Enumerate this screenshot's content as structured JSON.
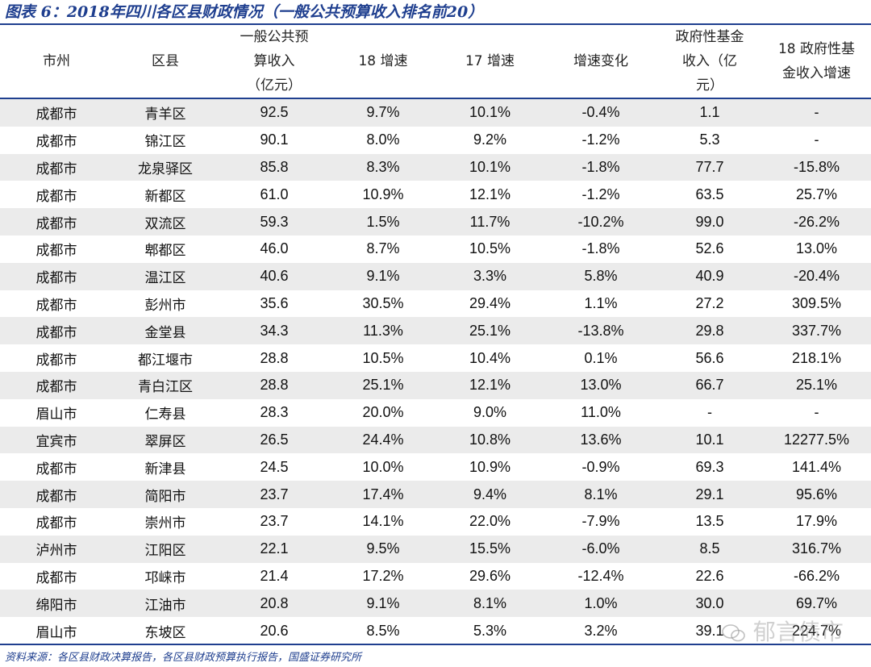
{
  "title": "图表 6：2018年四川各区县财政情况（一般公共预算收入排名前20）",
  "headers": {
    "city": "市州",
    "county": "区县",
    "revenue_l1": "一般公共预",
    "revenue_l2": "算收入",
    "revenue_l3": "（亿元）",
    "growth18": "18 增速",
    "growth17": "17 增速",
    "change": "增速变化",
    "fund_l1": "政府性基金",
    "fund_l2": "收入（亿",
    "fund_l3": "元）",
    "fund_growth_l1": "18 政府性基",
    "fund_growth_l2": "金收入增速"
  },
  "rows": [
    [
      "成都市",
      "青羊区",
      "92.5",
      "9.7%",
      "10.1%",
      "-0.4%",
      "1.1",
      "-"
    ],
    [
      "成都市",
      "锦江区",
      "90.1",
      "8.0%",
      "9.2%",
      "-1.2%",
      "5.3",
      "-"
    ],
    [
      "成都市",
      "龙泉驿区",
      "85.8",
      "8.3%",
      "10.1%",
      "-1.8%",
      "77.7",
      "-15.8%"
    ],
    [
      "成都市",
      "新都区",
      "61.0",
      "10.9%",
      "12.1%",
      "-1.2%",
      "63.5",
      "25.7%"
    ],
    [
      "成都市",
      "双流区",
      "59.3",
      "1.5%",
      "11.7%",
      "-10.2%",
      "99.0",
      "-26.2%"
    ],
    [
      "成都市",
      "郫都区",
      "46.0",
      "8.7%",
      "10.5%",
      "-1.8%",
      "52.6",
      "13.0%"
    ],
    [
      "成都市",
      "温江区",
      "40.6",
      "9.1%",
      "3.3%",
      "5.8%",
      "40.9",
      "-20.4%"
    ],
    [
      "成都市",
      "彭州市",
      "35.6",
      "30.5%",
      "29.4%",
      "1.1%",
      "27.2",
      "309.5%"
    ],
    [
      "成都市",
      "金堂县",
      "34.3",
      "11.3%",
      "25.1%",
      "-13.8%",
      "29.8",
      "337.7%"
    ],
    [
      "成都市",
      "都江堰市",
      "28.8",
      "10.5%",
      "10.4%",
      "0.1%",
      "56.6",
      "218.1%"
    ],
    [
      "成都市",
      "青白江区",
      "28.8",
      "25.1%",
      "12.1%",
      "13.0%",
      "66.7",
      "25.1%"
    ],
    [
      "眉山市",
      "仁寿县",
      "28.3",
      "20.0%",
      "9.0%",
      "11.0%",
      "-",
      "-"
    ],
    [
      "宜宾市",
      "翠屏区",
      "26.5",
      "24.4%",
      "10.8%",
      "13.6%",
      "10.1",
      "12277.5%"
    ],
    [
      "成都市",
      "新津县",
      "24.5",
      "10.0%",
      "10.9%",
      "-0.9%",
      "69.3",
      "141.4%"
    ],
    [
      "成都市",
      "简阳市",
      "23.7",
      "17.4%",
      "9.4%",
      "8.1%",
      "29.1",
      "95.6%"
    ],
    [
      "成都市",
      "崇州市",
      "23.7",
      "14.1%",
      "22.0%",
      "-7.9%",
      "13.5",
      "17.9%"
    ],
    [
      "泸州市",
      "江阳区",
      "22.1",
      "9.5%",
      "15.5%",
      "-6.0%",
      "8.5",
      "316.7%"
    ],
    [
      "成都市",
      "邛崃市",
      "21.4",
      "17.2%",
      "29.6%",
      "-12.4%",
      "22.6",
      "-66.2%"
    ],
    [
      "绵阳市",
      "江油市",
      "20.8",
      "9.1%",
      "8.1%",
      "1.0%",
      "30.0",
      "69.7%"
    ],
    [
      "眉山市",
      "东坡区",
      "20.6",
      "8.5%",
      "5.3%",
      "3.2%",
      "39.1",
      "224.7%"
    ]
  ],
  "footer": "资料来源：各区县财政决算报告，各区县财政预算执行报告，国盛证券研究所",
  "watermark": "郁言债市"
}
